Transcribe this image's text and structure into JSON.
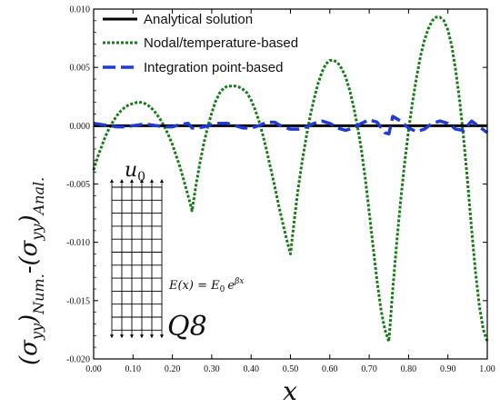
{
  "chart_data": {
    "type": "line",
    "xlabel": "x",
    "ylabel": {
      "base_open": "(σ",
      "sub1": "yy",
      "close1": ")",
      "sub2": "Num.",
      "mid": "-(σ",
      "sub3": "yy",
      "close2": ")",
      "sub4": "Anal."
    },
    "xlim": [
      0.0,
      1.0
    ],
    "ylim": [
      -0.02,
      0.01
    ],
    "x_ticks": [
      "0.00",
      "0.10",
      "0.20",
      "0.30",
      "0.40",
      "0.50",
      "0.60",
      "0.70",
      "0.80",
      "0.90",
      "1.00"
    ],
    "y_ticks": [
      "0.010",
      "0.005",
      "0.000",
      "-0.005",
      "-0.010",
      "-0.015",
      "-0.020"
    ],
    "legend_position": "top-left",
    "series": [
      {
        "name": "Analytical solution",
        "color": "#000000",
        "style": "solid",
        "x": [
          0.0,
          1.0
        ],
        "y": [
          0.0,
          0.0
        ]
      },
      {
        "name": "Nodal/temperature-based",
        "color": "#1a7a1a",
        "style": "dotted",
        "x": [
          0.0,
          0.01,
          0.02,
          0.03,
          0.04,
          0.05,
          0.06,
          0.07,
          0.08,
          0.09,
          0.1,
          0.11,
          0.12,
          0.13,
          0.14,
          0.15,
          0.16,
          0.17,
          0.18,
          0.19,
          0.2,
          0.21,
          0.22,
          0.23,
          0.24,
          0.25,
          0.25,
          0.26,
          0.27,
          0.28,
          0.29,
          0.3,
          0.31,
          0.32,
          0.33,
          0.34,
          0.35,
          0.36,
          0.37,
          0.38,
          0.39,
          0.4,
          0.41,
          0.42,
          0.43,
          0.44,
          0.45,
          0.46,
          0.47,
          0.48,
          0.49,
          0.5,
          0.5,
          0.51,
          0.52,
          0.53,
          0.54,
          0.55,
          0.56,
          0.57,
          0.58,
          0.59,
          0.6,
          0.61,
          0.62,
          0.63,
          0.64,
          0.65,
          0.66,
          0.67,
          0.68,
          0.69,
          0.7,
          0.71,
          0.72,
          0.73,
          0.74,
          0.75,
          0.75,
          0.76,
          0.77,
          0.78,
          0.79,
          0.8,
          0.81,
          0.82,
          0.83,
          0.84,
          0.85,
          0.86,
          0.87,
          0.88,
          0.89,
          0.9,
          0.91,
          0.92,
          0.93,
          0.94,
          0.95,
          0.96,
          0.97,
          0.98,
          0.99,
          1.0
        ],
        "y": [
          -0.0038,
          -0.0027,
          -0.0018,
          -0.0009,
          -0.0002,
          0.0004,
          0.0009,
          0.0013,
          0.0016,
          0.0018,
          0.0019,
          0.002,
          0.002,
          0.0019,
          0.0017,
          0.0014,
          0.001,
          0.0005,
          -0.0001,
          -0.0008,
          -0.0016,
          -0.0026,
          -0.0036,
          -0.0048,
          -0.006,
          -0.0073,
          -0.0073,
          -0.0051,
          -0.0032,
          -0.0015,
          -0.0001,
          0.0011,
          0.0021,
          0.0028,
          0.0032,
          0.0034,
          0.0034,
          0.0034,
          0.0033,
          0.0031,
          0.0028,
          0.0022,
          0.0014,
          0.0004,
          -0.0008,
          -0.0022,
          -0.0037,
          -0.0052,
          -0.0068,
          -0.0083,
          -0.0097,
          -0.011,
          -0.011,
          -0.008,
          -0.0053,
          -0.003,
          -0.001,
          0.0008,
          0.0023,
          0.0036,
          0.0046,
          0.0053,
          0.0056,
          0.0056,
          0.0054,
          0.0049,
          0.0042,
          0.0031,
          0.0017,
          0.0,
          -0.002,
          -0.0045,
          -0.0074,
          -0.0104,
          -0.0133,
          -0.0158,
          -0.0175,
          -0.0185,
          -0.0185,
          -0.014,
          -0.01,
          -0.0064,
          -0.0032,
          -0.0004,
          0.002,
          0.0041,
          0.0059,
          0.0073,
          0.0083,
          0.009,
          0.0093,
          0.0093,
          0.009,
          0.0082,
          0.0068,
          0.0047,
          0.0021,
          -0.0011,
          -0.0048,
          -0.0088,
          -0.0125,
          -0.0155,
          -0.0175,
          -0.0185
        ]
      },
      {
        "name": "Integration point-based",
        "color": "#1f3bd6",
        "style": "dashed",
        "x": [
          0.0,
          0.02,
          0.04,
          0.06,
          0.08,
          0.1,
          0.12,
          0.14,
          0.16,
          0.18,
          0.2,
          0.22,
          0.24,
          0.25,
          0.26,
          0.28,
          0.3,
          0.32,
          0.34,
          0.36,
          0.38,
          0.4,
          0.42,
          0.44,
          0.46,
          0.48,
          0.5,
          0.52,
          0.54,
          0.56,
          0.58,
          0.6,
          0.62,
          0.64,
          0.66,
          0.68,
          0.7,
          0.72,
          0.74,
          0.75,
          0.76,
          0.78,
          0.8,
          0.82,
          0.84,
          0.86,
          0.88,
          0.9,
          0.92,
          0.94,
          0.96,
          0.98,
          1.0
        ],
        "y": [
          0.0002,
          0.0001,
          0.0,
          -0.0001,
          -0.0001,
          0.0,
          0.0001,
          0.0001,
          0.0,
          -0.0001,
          -0.0001,
          0.0001,
          0.0002,
          -0.0002,
          -0.0002,
          -0.0001,
          0.0001,
          0.0002,
          0.0002,
          0.0,
          -0.0002,
          -0.0002,
          0.0,
          0.0003,
          0.0003,
          -0.0001,
          -0.0003,
          -0.0003,
          -0.0001,
          0.0002,
          0.0004,
          0.0002,
          -0.0002,
          -0.0004,
          -0.0002,
          0.0002,
          0.0005,
          0.0003,
          -0.0006,
          -0.0007,
          0.0008,
          0.0004,
          -0.0002,
          -0.0005,
          -0.0003,
          0.0002,
          0.0004,
          0.0002,
          -0.0003,
          -0.0004,
          0.0004,
          -0.0001,
          -0.0006
        ]
      }
    ],
    "annotations": {
      "load_label": "u",
      "load_sub": "0",
      "equation_lhs": "E(x) = E",
      "equation_sub": "0",
      "equation_e": "e",
      "equation_exp": "βx",
      "element_label": "Q8"
    }
  }
}
